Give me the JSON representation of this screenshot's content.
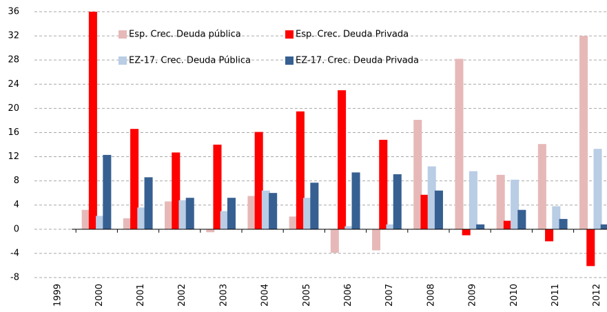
{
  "chart_data": {
    "type": "bar",
    "categories": [
      "1999",
      "2000",
      "2001",
      "2002",
      "2003",
      "2004",
      "2005",
      "2006",
      "2007",
      "2008",
      "2009",
      "2010",
      "2011",
      "2012"
    ],
    "series": [
      {
        "name": "Esp. Crec. Deuda pública",
        "color": "#e6b9b8",
        "values": [
          null,
          3.2,
          1.8,
          4.6,
          -0.5,
          5.5,
          2.1,
          -3.9,
          -3.5,
          18.1,
          28.2,
          9.0,
          14.1,
          32.0
        ]
      },
      {
        "name": "Esp. Crec. Deuda Privada",
        "color": "#ff0000",
        "values": [
          null,
          36,
          16.6,
          12.7,
          14.0,
          16.1,
          19.5,
          23.0,
          14.8,
          5.7,
          -1.0,
          1.4,
          -2.0,
          -6.1
        ]
      },
      {
        "name": "EZ-17. Crec. Deuda Pública",
        "color": "#b9cde5",
        "values": [
          null,
          2.2,
          3.6,
          4.8,
          3.0,
          6.4,
          5.2,
          0.5,
          0.8,
          10.4,
          9.6,
          8.2,
          3.8,
          13.3
        ]
      },
      {
        "name": "EZ-17. Crec. Deuda Privada",
        "color": "#376092",
        "values": [
          null,
          12.3,
          8.6,
          5.2,
          5.2,
          6.0,
          7.7,
          9.4,
          9.1,
          6.4,
          0.8,
          3.2,
          1.7,
          0.8
        ]
      }
    ],
    "ylim": [
      -8,
      36
    ],
    "yticks": [
      -8,
      -4,
      0,
      4,
      8,
      12,
      16,
      20,
      24,
      28,
      32,
      36
    ],
    "grid": true,
    "legend": "top"
  }
}
